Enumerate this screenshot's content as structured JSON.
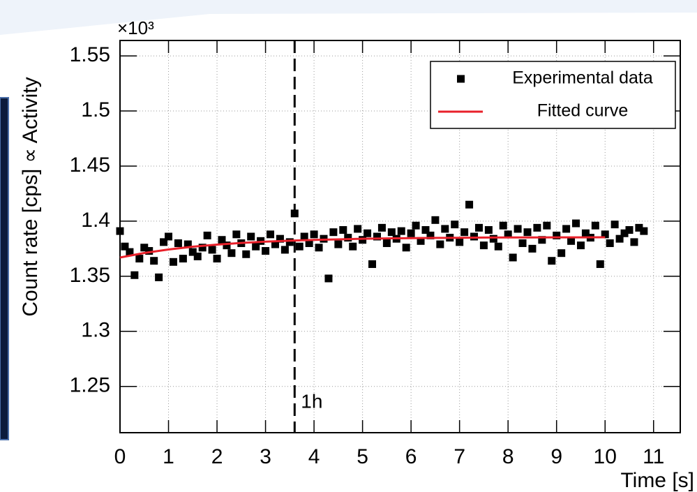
{
  "chart_data": {
    "type": "scatter",
    "y_label": "Count rate [cps] ∝ Activity",
    "x_label": "Time [s]",
    "y_multiplier": "×10³",
    "xlim": [
      0,
      11.55
    ],
    "ylim": [
      1.208,
      1.564
    ],
    "xticks": [
      0,
      1,
      2,
      3,
      4,
      5,
      6,
      7,
      8,
      9,
      10,
      11
    ],
    "yticks": [
      1.25,
      1.3,
      1.35,
      1.4,
      1.45,
      1.5,
      1.55
    ],
    "grid": true,
    "legend": "upper right",
    "vline": {
      "x": 3.6,
      "label": "1h"
    },
    "series": [
      {
        "name": "Experimental data",
        "color": "#000000",
        "kind": "points",
        "x": [
          0.0,
          0.1,
          0.2,
          0.3,
          0.4,
          0.5,
          0.6,
          0.7,
          0.8,
          0.9,
          1.0,
          1.1,
          1.2,
          1.3,
          1.4,
          1.5,
          1.6,
          1.7,
          1.8,
          1.9,
          2.0,
          2.1,
          2.2,
          2.3,
          2.4,
          2.5,
          2.6,
          2.7,
          2.8,
          2.9,
          3.0,
          3.1,
          3.2,
          3.3,
          3.4,
          3.5,
          3.6,
          3.7,
          3.8,
          3.9,
          4.0,
          4.1,
          4.2,
          4.3,
          4.4,
          4.5,
          4.6,
          4.7,
          4.8,
          4.9,
          5.0,
          5.1,
          5.2,
          5.3,
          5.4,
          5.5,
          5.6,
          5.7,
          5.8,
          5.9,
          6.0,
          6.1,
          6.2,
          6.3,
          6.4,
          6.5,
          6.6,
          6.7,
          6.8,
          6.9,
          7.0,
          7.1,
          7.2,
          7.3,
          7.4,
          7.5,
          7.6,
          7.7,
          7.8,
          7.9,
          8.0,
          8.1,
          8.2,
          8.3,
          8.4,
          8.5,
          8.6,
          8.7,
          8.8,
          8.9,
          9.0,
          9.1,
          9.2,
          9.3,
          9.4,
          9.5,
          9.6,
          9.7,
          9.8,
          9.9,
          10.0,
          10.1,
          10.2,
          10.3,
          10.4,
          10.5,
          10.6,
          10.7,
          10.8
        ],
        "values": [
          1.391,
          1.377,
          1.372,
          1.351,
          1.366,
          1.376,
          1.373,
          1.364,
          1.349,
          1.381,
          1.386,
          1.363,
          1.38,
          1.366,
          1.379,
          1.372,
          1.368,
          1.376,
          1.387,
          1.374,
          1.366,
          1.383,
          1.378,
          1.371,
          1.388,
          1.38,
          1.37,
          1.386,
          1.377,
          1.382,
          1.373,
          1.388,
          1.379,
          1.384,
          1.374,
          1.381,
          1.407,
          1.377,
          1.386,
          1.38,
          1.388,
          1.376,
          1.384,
          1.348,
          1.39,
          1.379,
          1.392,
          1.385,
          1.377,
          1.393,
          1.383,
          1.389,
          1.361,
          1.386,
          1.394,
          1.38,
          1.39,
          1.384,
          1.391,
          1.376,
          1.389,
          1.396,
          1.382,
          1.392,
          1.387,
          1.401,
          1.379,
          1.393,
          1.385,
          1.397,
          1.381,
          1.39,
          1.415,
          1.386,
          1.394,
          1.378,
          1.392,
          1.384,
          1.377,
          1.396,
          1.388,
          1.367,
          1.393,
          1.38,
          1.39,
          1.375,
          1.394,
          1.383,
          1.396,
          1.364,
          1.387,
          1.371,
          1.393,
          1.382,
          1.398,
          1.378,
          1.389,
          1.385,
          1.396,
          1.361,
          1.388,
          1.38,
          1.397,
          1.384,
          1.389,
          1.392,
          1.381,
          1.394,
          1.391
        ]
      },
      {
        "name": "Fitted curve",
        "color": "#e8202a",
        "kind": "line",
        "x": [
          0,
          0.5,
          1,
          1.5,
          2,
          2.5,
          3,
          3.5,
          4,
          4.5,
          5,
          5.5,
          6,
          6.5,
          7,
          7.5,
          8,
          8.5,
          9,
          9.5,
          10
        ],
        "values": [
          1.367,
          1.3711,
          1.3743,
          1.3768,
          1.3787,
          1.3802,
          1.3814,
          1.3823,
          1.383,
          1.3835,
          1.384,
          1.3843,
          1.3846,
          1.3848,
          1.3849,
          1.3851,
          1.3852,
          1.3852,
          1.3853,
          1.3853,
          1.3854
        ]
      }
    ]
  }
}
